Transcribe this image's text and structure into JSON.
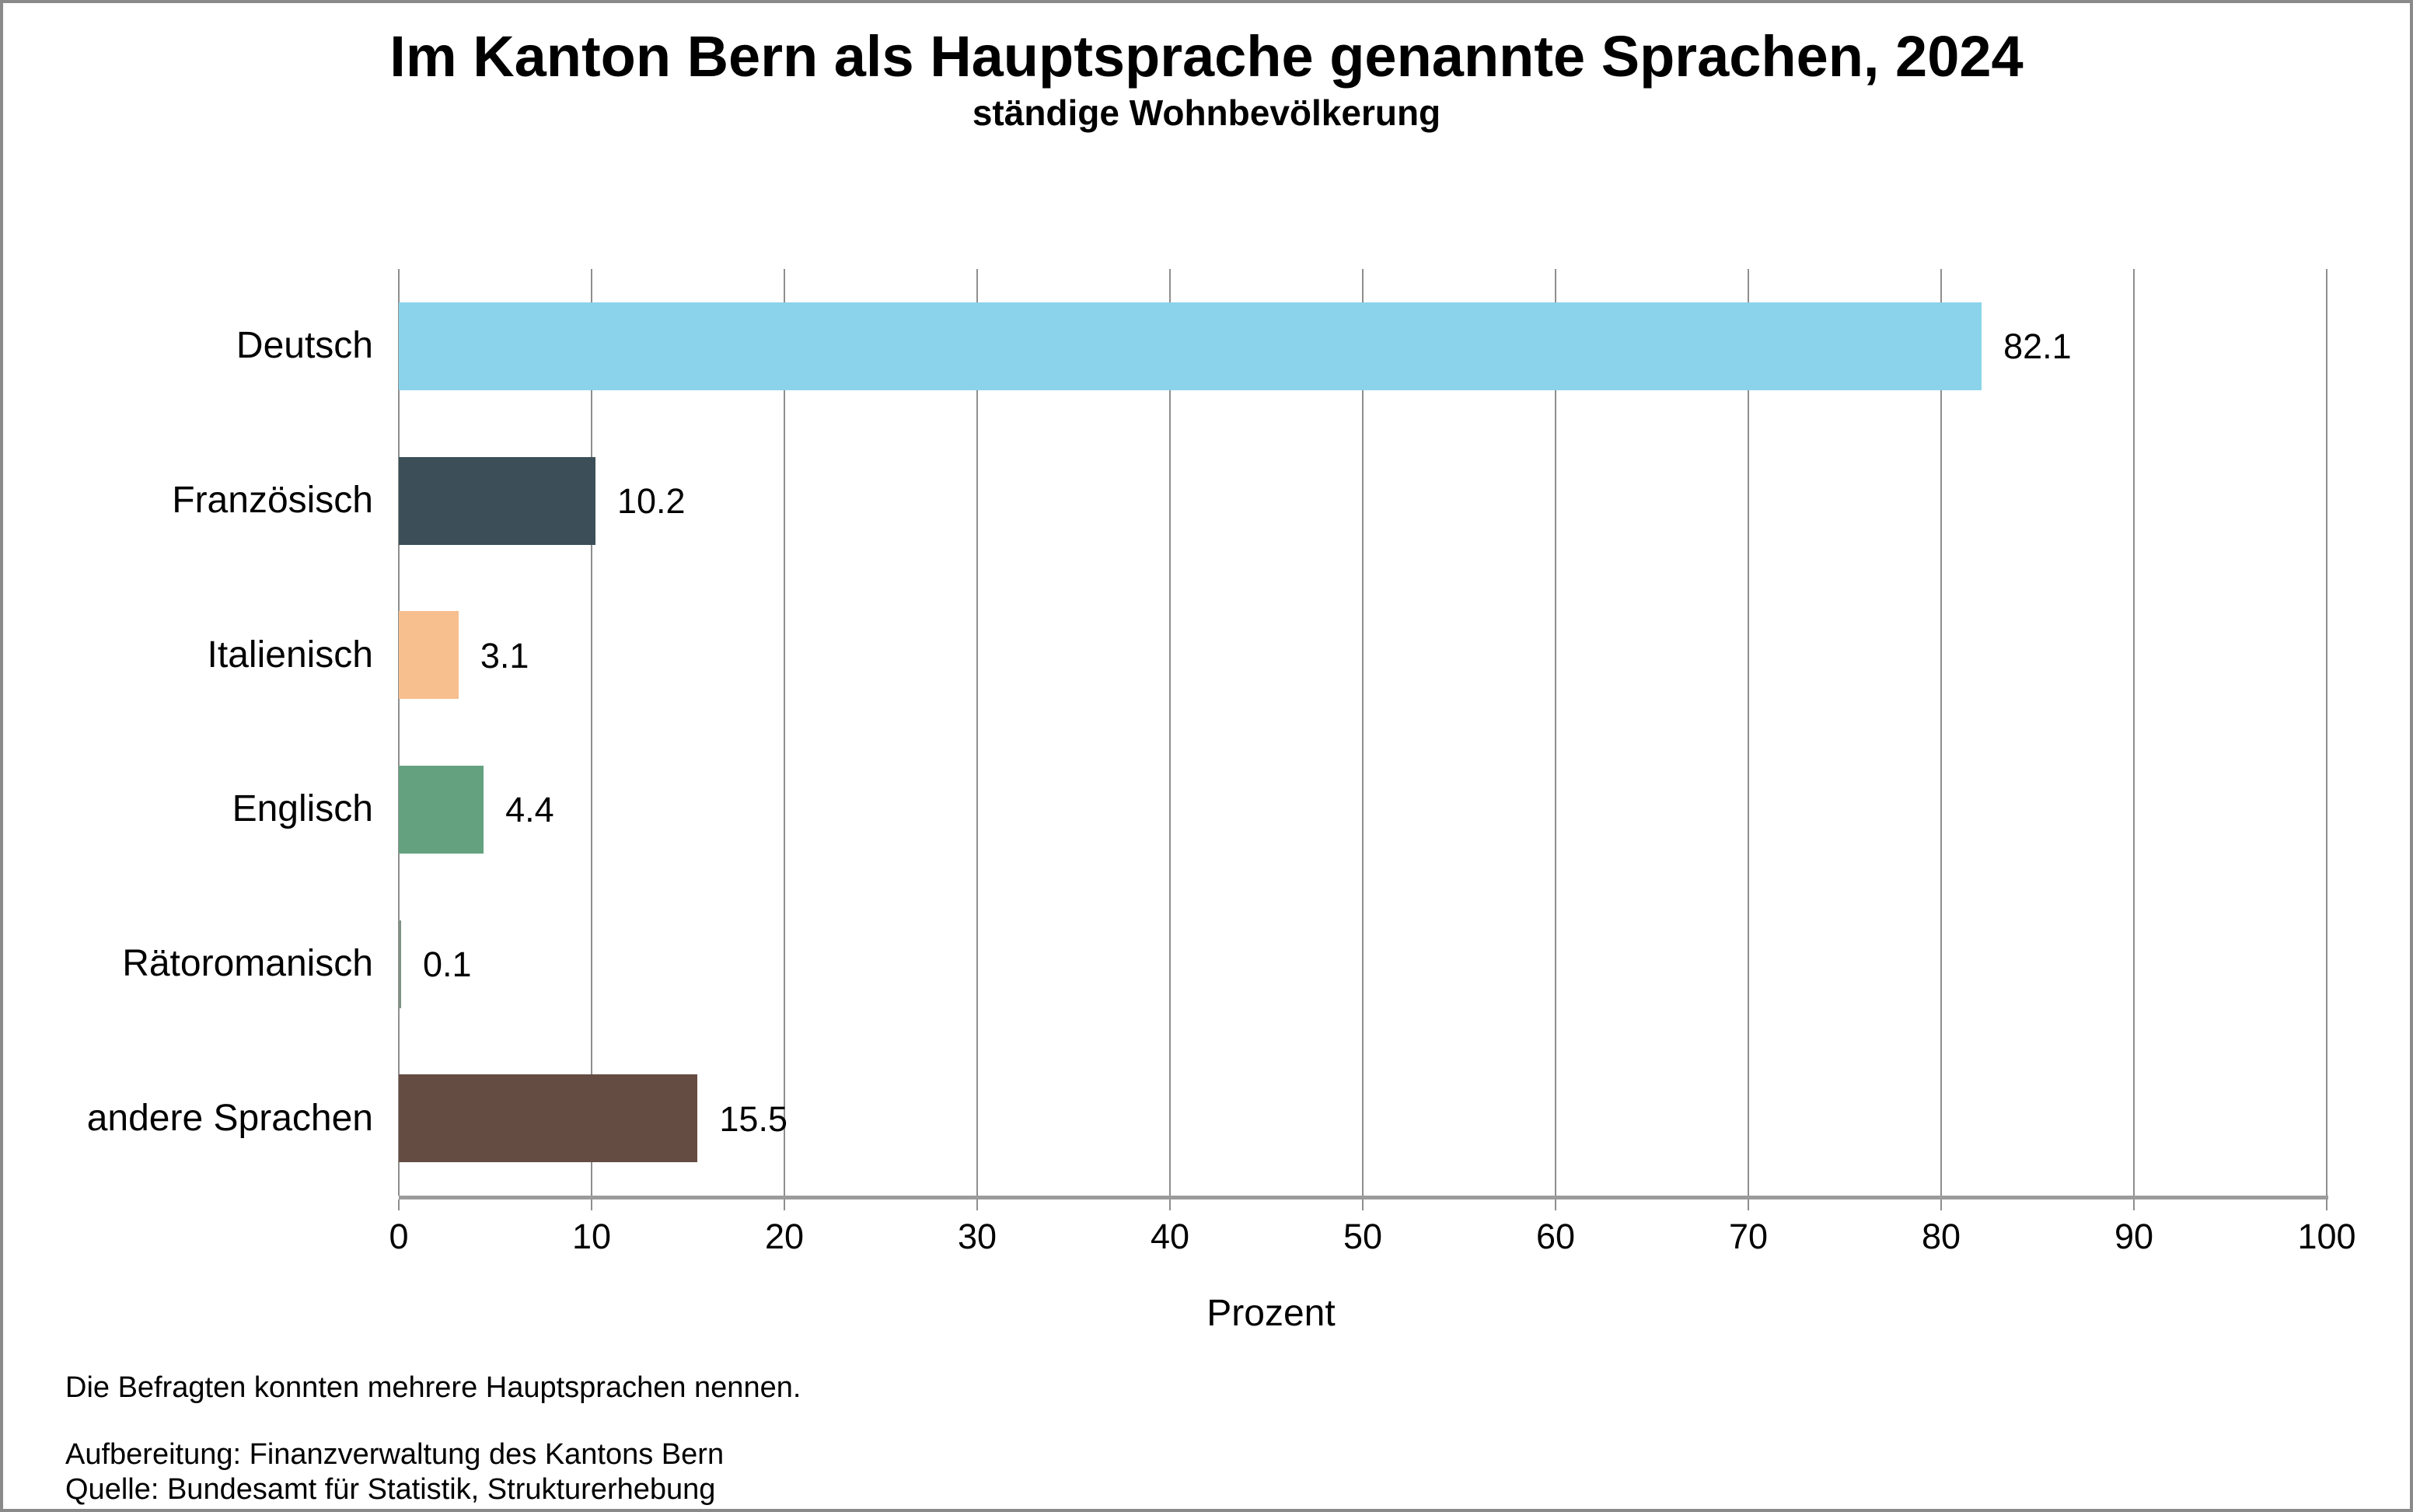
{
  "chart_data": {
    "type": "bar",
    "orientation": "horizontal",
    "title": "Im Kanton Bern als Hauptsprache genannte Sprachen, 2024",
    "subtitle": "ständige Wohnbevölkerung",
    "categories": [
      "Deutsch",
      "Französisch",
      "Italienisch",
      "Englisch",
      "Rätoromanisch",
      "andere Sprachen"
    ],
    "values": [
      82.1,
      10.2,
      3.1,
      4.4,
      0.1,
      15.5
    ],
    "value_labels": [
      "82.1",
      "10.2",
      "3.1",
      "4.4",
      "0.1",
      "15.5"
    ],
    "bar_colors": [
      "#8ad3ea",
      "#3c4f58",
      "#f7bf8e",
      "#64a17f",
      "#7f9285",
      "#654c42"
    ],
    "xlabel": "Prozent",
    "xlim": [
      0,
      100
    ],
    "xticks": [
      0,
      10,
      20,
      30,
      40,
      50,
      60,
      70,
      80,
      90,
      100
    ],
    "grid": "vertical",
    "legend": "none",
    "footnotes": [
      "Die Befragten konnten mehrere Hauptsprachen nennen.",
      "Aufbereitung: Finanzverwaltung des Kantons Bern",
      "Quelle: Bundesamt für Statistik, Strukturerhebung"
    ],
    "colors_meta": {
      "gridline": "#8e8e8e",
      "axis_line": "#9b9b9b",
      "frame_border": "#8a8a8a",
      "text": "#000000",
      "background": "#ffffff"
    }
  }
}
